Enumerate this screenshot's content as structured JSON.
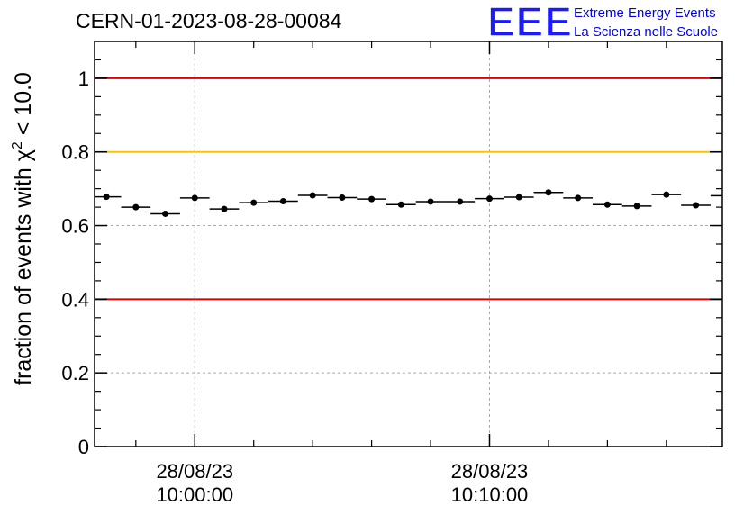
{
  "header": {
    "run_id": "CERN-01-2023-08-28-00084",
    "logo_letters": "EEE",
    "logo_line1": "Extreme Energy Events",
    "logo_line2": "La Scienza nelle Scuole"
  },
  "colors": {
    "red_lines": "#dd0000",
    "yellow_line": "#ffc000",
    "points": "#000000",
    "grid": "#aaaaaa",
    "logo": "#1a1aff"
  },
  "chart_data": {
    "type": "scatter",
    "title": "CERN-01-2023-08-28-00084",
    "ylabel": {
      "prefix": "fraction of events with ",
      "chi": "χ",
      "exp": "2",
      "suffix": " < 10.0"
    },
    "xlabel": "",
    "ylim": [
      0,
      1.1
    ],
    "y_ticks": [
      0,
      0.2,
      0.4,
      0.6,
      0.8,
      1
    ],
    "y_tick_labels": [
      "0",
      "0.2",
      "0.4",
      "0.6",
      "0.8",
      "1"
    ],
    "x_range_minutes": [
      -3.4,
      17.9
    ],
    "x_major_ticks": [
      {
        "minute": 0,
        "date": "28/08/23",
        "time": "10:00:00"
      },
      {
        "minute": 10,
        "date": "28/08/23",
        "time": "10:10:00"
      }
    ],
    "x_minor_tick_minutes": [
      -2,
      2,
      4,
      6,
      8,
      12,
      14,
      16
    ],
    "grid": true,
    "reference_lines": [
      {
        "y": 1.0,
        "color": "red"
      },
      {
        "y": 0.8,
        "color": "yellow"
      },
      {
        "y": 0.4,
        "color": "red"
      }
    ],
    "bin_width_minutes": 1,
    "points": [
      {
        "x": -3.0,
        "y": 0.678
      },
      {
        "x": -2.0,
        "y": 0.65
      },
      {
        "x": -1.0,
        "y": 0.632
      },
      {
        "x": 0.0,
        "y": 0.675
      },
      {
        "x": 1.0,
        "y": 0.645
      },
      {
        "x": 2.0,
        "y": 0.662
      },
      {
        "x": 3.0,
        "y": 0.666
      },
      {
        "x": 4.0,
        "y": 0.682
      },
      {
        "x": 5.0,
        "y": 0.676
      },
      {
        "x": 6.0,
        "y": 0.672
      },
      {
        "x": 7.0,
        "y": 0.657
      },
      {
        "x": 8.0,
        "y": 0.665
      },
      {
        "x": 9.0,
        "y": 0.665
      },
      {
        "x": 10.0,
        "y": 0.673
      },
      {
        "x": 11.0,
        "y": 0.677
      },
      {
        "x": 12.0,
        "y": 0.69
      },
      {
        "x": 13.0,
        "y": 0.675
      },
      {
        "x": 14.0,
        "y": 0.657
      },
      {
        "x": 15.0,
        "y": 0.653
      },
      {
        "x": 16.0,
        "y": 0.684
      },
      {
        "x": 17.0,
        "y": 0.655
      },
      {
        "x": 18.0,
        "y": 0.681
      }
    ]
  }
}
